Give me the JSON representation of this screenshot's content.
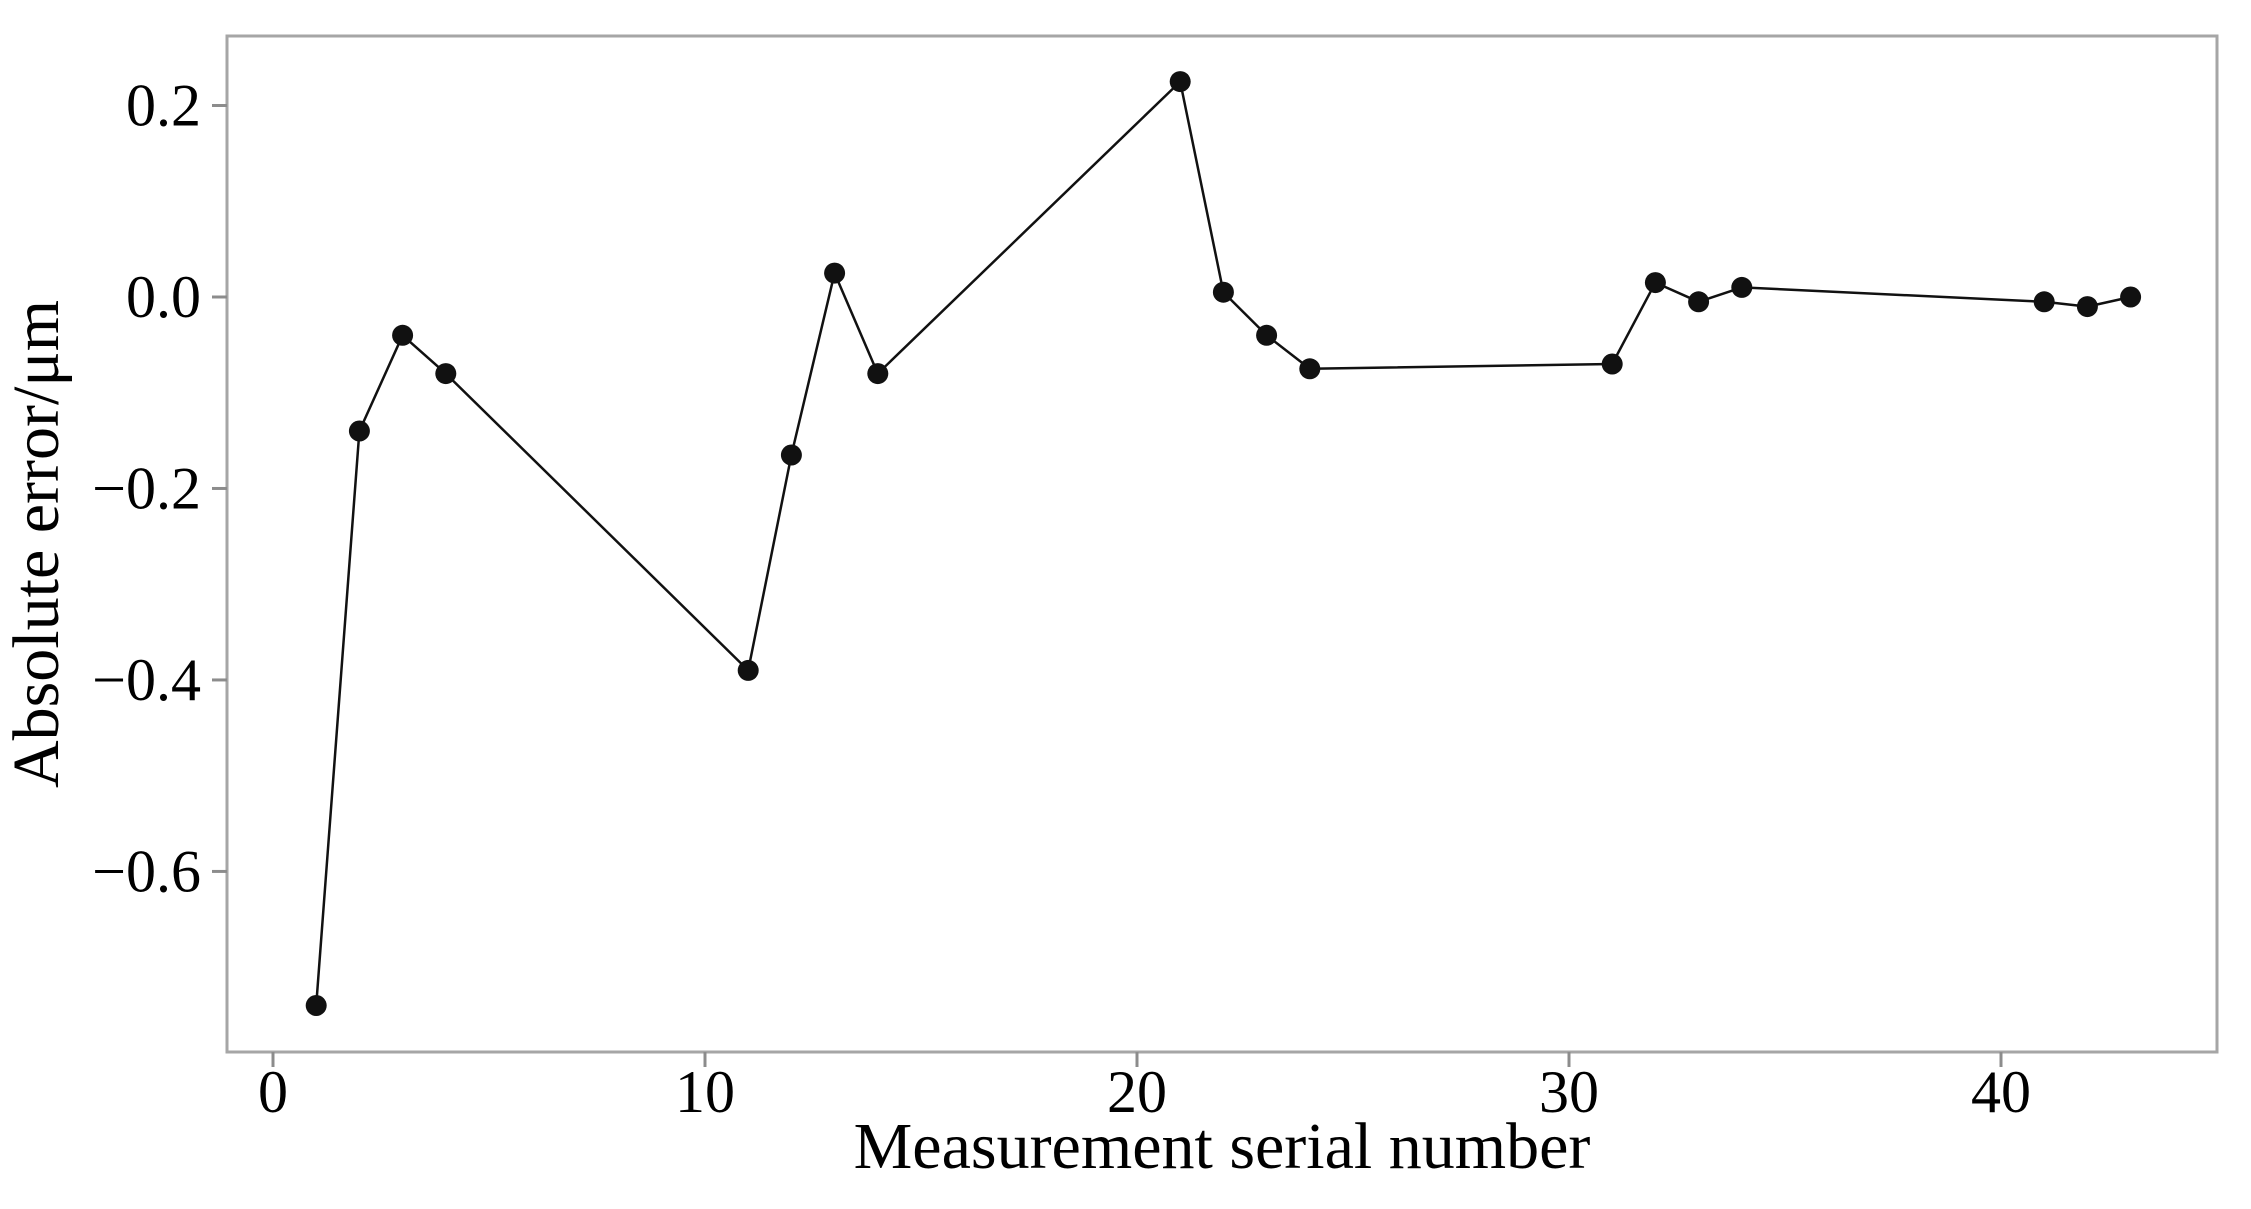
{
  "figure": {
    "background_color": "#ffffff",
    "frame_color": "#a6a6a6",
    "tick_color": "#8c8c8c",
    "text_color": "#000000"
  },
  "chart_data": {
    "type": "line",
    "title": "",
    "xlabel": "Measurement serial number",
    "ylabel": "Absolute error/μm",
    "line_color": "#111111",
    "marker": "circle",
    "marker_color": "#111111",
    "grid": false,
    "legend": null,
    "xlim": [
      -1.065,
      45.0
    ],
    "ylim": [
      -0.7886,
      0.2726
    ],
    "x_ticks": [
      0,
      10,
      20,
      30,
      40
    ],
    "x_tick_labels": [
      "0",
      "10",
      "20",
      "30",
      "40"
    ],
    "y_ticks": [
      0.2,
      0.0,
      -0.2,
      -0.4,
      -0.6
    ],
    "y_tick_labels": [
      "0.2",
      "0.0",
      "−0.2",
      "−0.4",
      "−0.6"
    ],
    "points": [
      {
        "x": 1,
        "y": -0.74
      },
      {
        "x": 2,
        "y": -0.14
      },
      {
        "x": 3,
        "y": -0.04
      },
      {
        "x": 4,
        "y": -0.08
      },
      {
        "x": 11,
        "y": -0.39
      },
      {
        "x": 12,
        "y": -0.165
      },
      {
        "x": 13,
        "y": 0.025
      },
      {
        "x": 14,
        "y": -0.08
      },
      {
        "x": 21,
        "y": 0.225
      },
      {
        "x": 22,
        "y": 0.005
      },
      {
        "x": 23,
        "y": -0.04
      },
      {
        "x": 24,
        "y": -0.075
      },
      {
        "x": 31,
        "y": -0.07
      },
      {
        "x": 32,
        "y": 0.015
      },
      {
        "x": 33,
        "y": -0.005
      },
      {
        "x": 34,
        "y": 0.01
      },
      {
        "x": 41,
        "y": -0.005
      },
      {
        "x": 42,
        "y": -0.01
      },
      {
        "x": 43,
        "y": 0.0
      }
    ]
  }
}
